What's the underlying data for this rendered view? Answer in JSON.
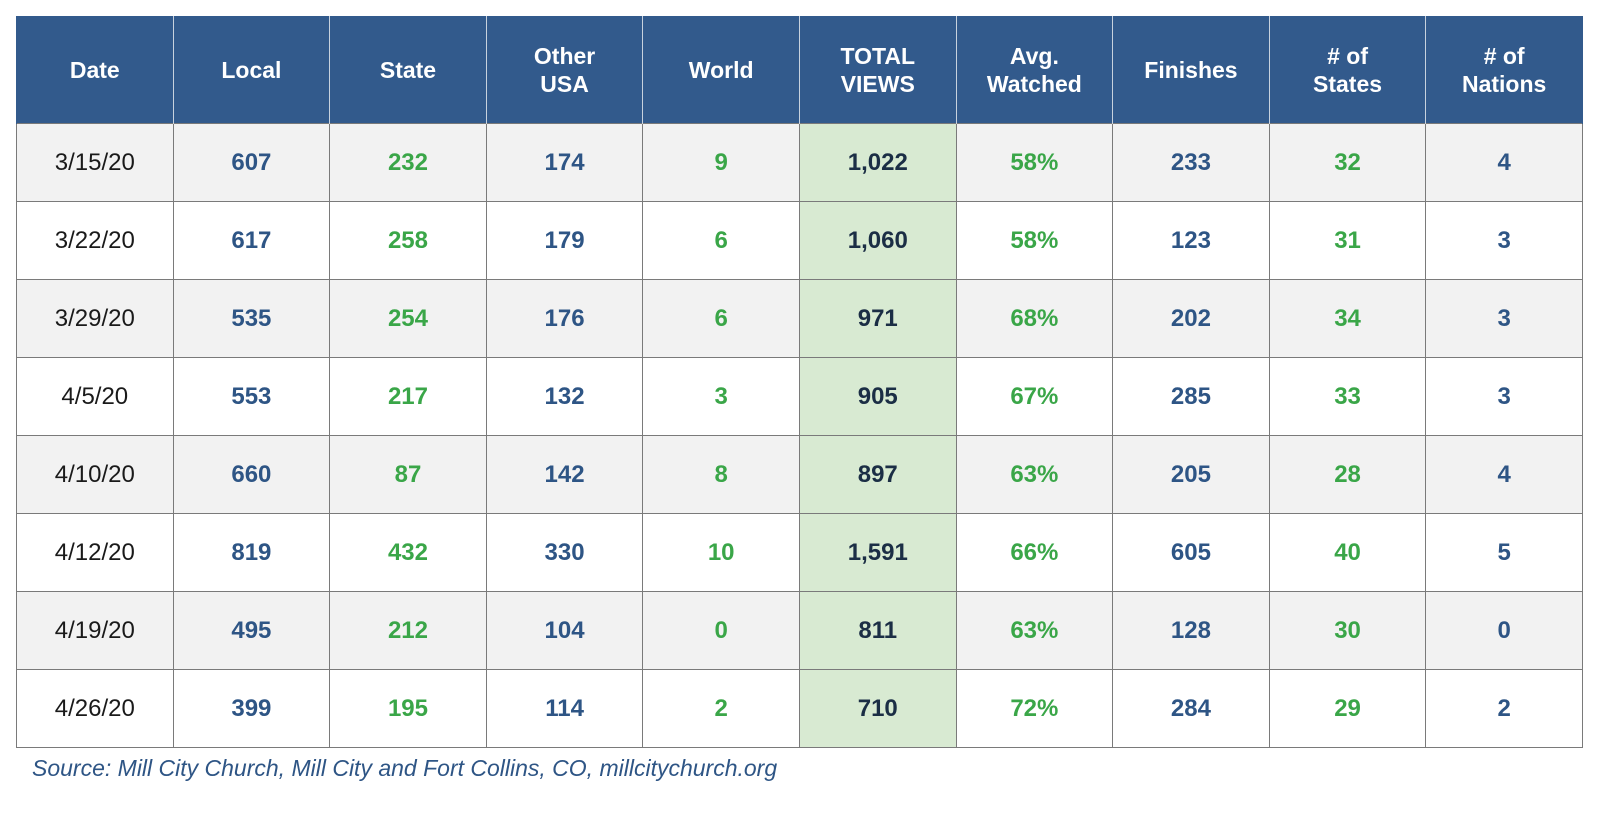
{
  "chart_data": {
    "type": "table",
    "columns": [
      {
        "lines": [
          "Date"
        ]
      },
      {
        "lines": [
          "Local"
        ]
      },
      {
        "lines": [
          "State"
        ]
      },
      {
        "lines": [
          "Other",
          "USA"
        ]
      },
      {
        "lines": [
          "World"
        ]
      },
      {
        "lines": [
          "TOTAL",
          "VIEWS"
        ]
      },
      {
        "lines": [
          "Avg.",
          "Watched"
        ]
      },
      {
        "lines": [
          "Finishes"
        ]
      },
      {
        "lines": [
          "# of",
          "States"
        ]
      },
      {
        "lines": [
          "# of",
          "Nations"
        ]
      }
    ],
    "rows": [
      [
        "3/15/20",
        "607",
        "232",
        "174",
        "9",
        "1,022",
        "58%",
        "233",
        "32",
        "4"
      ],
      [
        "3/22/20",
        "617",
        "258",
        "179",
        "6",
        "1,060",
        "58%",
        "123",
        "31",
        "3"
      ],
      [
        "3/29/20",
        "535",
        "254",
        "176",
        "6",
        "971",
        "68%",
        "202",
        "34",
        "3"
      ],
      [
        "4/5/20",
        "553",
        "217",
        "132",
        "3",
        "905",
        "67%",
        "285",
        "33",
        "3"
      ],
      [
        "4/10/20",
        "660",
        "87",
        "142",
        "8",
        "897",
        "63%",
        "205",
        "28",
        "4"
      ],
      [
        "4/12/20",
        "819",
        "432",
        "330",
        "10",
        "1,591",
        "66%",
        "605",
        "40",
        "5"
      ],
      [
        "4/19/20",
        "495",
        "212",
        "104",
        "0",
        "811",
        "63%",
        "128",
        "30",
        "0"
      ],
      [
        "4/26/20",
        "399",
        "195",
        "114",
        "2",
        "710",
        "72%",
        "284",
        "29",
        "2"
      ]
    ],
    "source": "Source: Mill City Church, Mill City and Fort Collins, CO, millcitychurch.org"
  },
  "colors": {
    "header_bg": "#325a8c",
    "header_text": "#ffffff",
    "value_blue": "#2e5585",
    "value_green": "#3aa648",
    "total_column_bg": "#d8ead2",
    "stripe_bg": "#f2f2f2"
  }
}
